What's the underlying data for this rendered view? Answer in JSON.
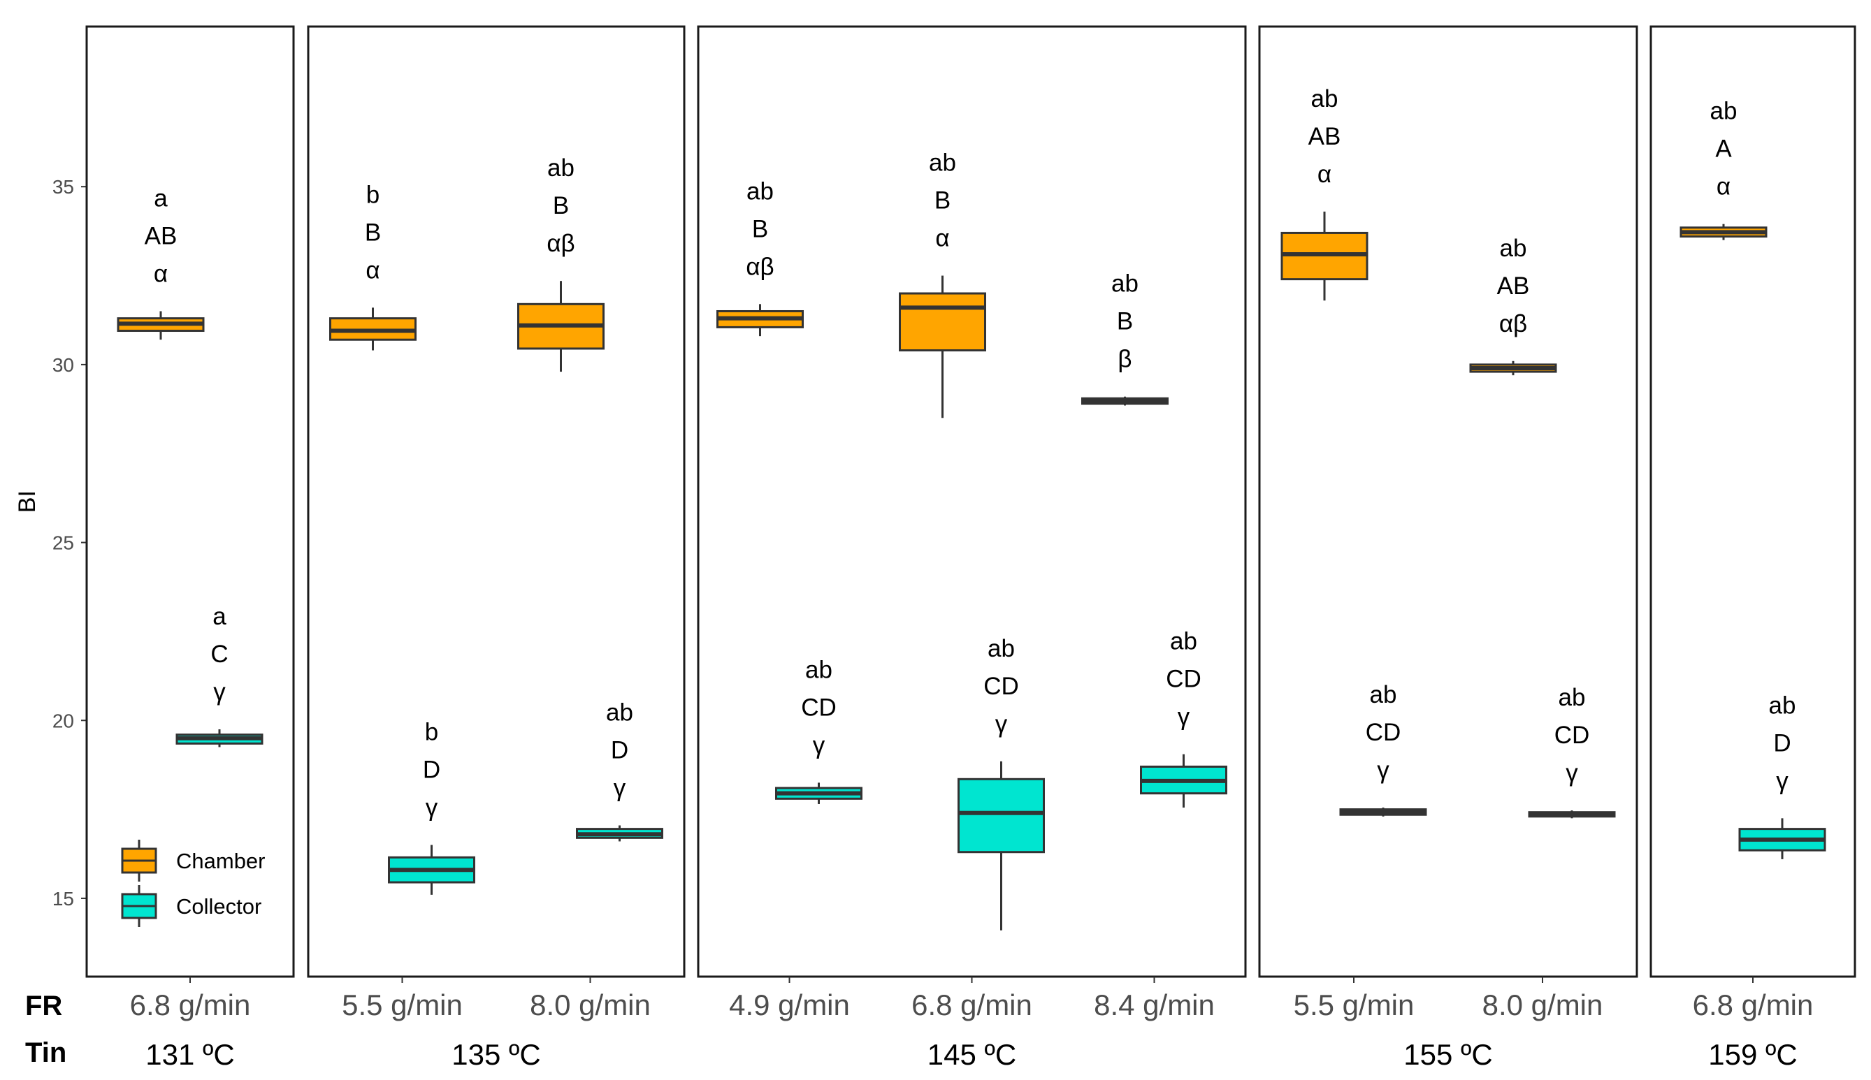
{
  "colors": {
    "chamber": "#FFA500",
    "collector": "#00E5D0",
    "stroke": "#333333",
    "panel_border": "#1a1a1a"
  },
  "chart_data": {
    "type": "box",
    "ylabel": "BI",
    "ylim": [
      12.8,
      39.5
    ],
    "yticks": [
      15,
      20,
      25,
      30,
      35
    ],
    "row_labels": {
      "fr": "FR",
      "tin": "Tin"
    },
    "legend": [
      {
        "name": "Chamber",
        "color": "#FFA500"
      },
      {
        "name": "Collector",
        "color": "#00E5D0"
      }
    ],
    "panels": [
      {
        "tin": "131 ºC",
        "groups": [
          {
            "fr": "6.8 g/min",
            "chamber": {
              "min": 30.7,
              "q1": 30.95,
              "median": 31.15,
              "q3": 31.3,
              "max": 31.5,
              "letters": [
                "a",
                "AB",
                "α"
              ]
            },
            "collector": {
              "min": 19.25,
              "q1": 19.35,
              "median": 19.5,
              "q3": 19.6,
              "max": 19.75,
              "letters": [
                "a",
                "C",
                "γ"
              ]
            }
          }
        ]
      },
      {
        "tin": "135 ºC",
        "groups": [
          {
            "fr": "5.5 g/min",
            "chamber": {
              "min": 30.4,
              "q1": 30.7,
              "median": 30.95,
              "q3": 31.3,
              "max": 31.6,
              "letters": [
                "b",
                "B",
                "α"
              ]
            },
            "collector": {
              "min": 15.1,
              "q1": 15.45,
              "median": 15.8,
              "q3": 16.15,
              "max": 16.5,
              "letters": [
                "b",
                "D",
                "γ"
              ]
            }
          },
          {
            "fr": "8.0 g/min",
            "chamber": {
              "min": 29.8,
              "q1": 30.45,
              "median": 31.1,
              "q3": 31.7,
              "max": 32.35,
              "letters": [
                "ab",
                "B",
                "αβ"
              ]
            },
            "collector": {
              "min": 16.6,
              "q1": 16.7,
              "median": 16.8,
              "q3": 16.95,
              "max": 17.05,
              "letters": [
                "ab",
                "D",
                "γ"
              ]
            }
          }
        ]
      },
      {
        "tin": "145 ºC",
        "groups": [
          {
            "fr": "4.9 g/min",
            "chamber": {
              "min": 30.8,
              "q1": 31.05,
              "median": 31.3,
              "q3": 31.5,
              "max": 31.7,
              "letters": [
                "ab",
                "B",
                "αβ"
              ]
            },
            "collector": {
              "min": 17.65,
              "q1": 17.8,
              "median": 17.95,
              "q3": 18.1,
              "max": 18.25,
              "letters": [
                "ab",
                "CD",
                "γ"
              ]
            }
          },
          {
            "fr": "6.8 g/min",
            "chamber": {
              "min": 28.5,
              "q1": 30.4,
              "median": 31.6,
              "q3": 32.0,
              "max": 32.5,
              "letters": [
                "ab",
                "B",
                "α"
              ]
            },
            "collector": {
              "min": 14.1,
              "q1": 16.3,
              "median": 17.4,
              "q3": 18.35,
              "max": 18.85,
              "letters": [
                "ab",
                "CD",
                "γ"
              ]
            }
          },
          {
            "fr": "8.4 g/min",
            "chamber": {
              "min": 28.85,
              "q1": 28.9,
              "median": 28.97,
              "q3": 29.05,
              "max": 29.1,
              "letters": [
                "ab",
                "B",
                "β"
              ]
            },
            "collector": {
              "min": 17.55,
              "q1": 17.95,
              "median": 18.3,
              "q3": 18.7,
              "max": 19.05,
              "letters": [
                "ab",
                "CD",
                "γ"
              ]
            }
          }
        ]
      },
      {
        "tin": "155 ºC",
        "groups": [
          {
            "fr": "5.5 g/min",
            "chamber": {
              "min": 31.8,
              "q1": 32.4,
              "median": 33.1,
              "q3": 33.7,
              "max": 34.3,
              "letters": [
                "ab",
                "AB",
                "α"
              ]
            },
            "collector": {
              "min": 17.3,
              "q1": 17.35,
              "median": 17.42,
              "q3": 17.5,
              "max": 17.55,
              "letters": [
                "ab",
                "CD",
                "γ"
              ]
            }
          },
          {
            "fr": "8.0 g/min",
            "chamber": {
              "min": 29.7,
              "q1": 29.8,
              "median": 29.9,
              "q3": 30.0,
              "max": 30.1,
              "letters": [
                "ab",
                "AB",
                "αβ"
              ]
            },
            "collector": {
              "min": 17.25,
              "q1": 17.3,
              "median": 17.35,
              "q3": 17.42,
              "max": 17.47,
              "letters": [
                "ab",
                "CD",
                "γ"
              ]
            }
          }
        ]
      },
      {
        "tin": "159 ºC",
        "groups": [
          {
            "fr": "6.8 g/min",
            "chamber": {
              "min": 33.5,
              "q1": 33.6,
              "median": 33.72,
              "q3": 33.85,
              "max": 33.95,
              "letters": [
                "ab",
                "A",
                "α"
              ]
            },
            "collector": {
              "min": 16.1,
              "q1": 16.35,
              "median": 16.65,
              "q3": 16.95,
              "max": 17.25,
              "letters": [
                "ab",
                "D",
                "γ"
              ]
            }
          }
        ]
      }
    ]
  }
}
